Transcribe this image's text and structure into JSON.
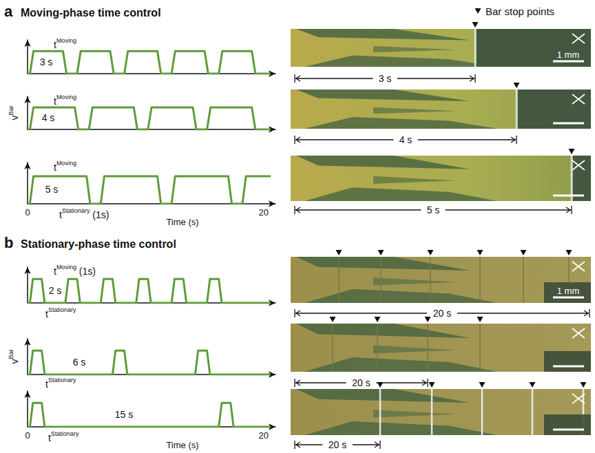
{
  "figure": {
    "legend_text": "Bar stop points",
    "panels": [
      {
        "letter": "a",
        "title": "Moving-phase time control",
        "images": [
          {
            "duration_label": "3 s",
            "scale_bar": "1 mm"
          },
          {
            "duration_label": "4 s"
          },
          {
            "duration_label": "5 s"
          }
        ]
      },
      {
        "letter": "b",
        "title": "Stationary-phase time control",
        "images": [
          {
            "duration_label": "20 s",
            "scale_bar": "1 mm"
          },
          {
            "duration_label": "20 s"
          },
          {
            "duration_label": "20 s"
          }
        ]
      }
    ]
  },
  "chart_data": [
    {
      "type": "line",
      "color": "#5e9c3a",
      "grid": false,
      "tick_labels": false,
      "xlim": [
        0,
        21
      ],
      "xticks": [],
      "ylim": [
        0,
        1.5
      ],
      "yticks": [],
      "x": [
        0,
        0.2,
        0.5,
        3.0,
        3.3,
        4.2,
        4.5,
        7.0,
        7.3,
        8.2,
        8.5,
        11.0,
        11.3,
        12.2,
        12.5,
        15.0,
        15.3,
        16.2,
        16.5,
        19.0,
        19.3,
        20.6
      ],
      "values": [
        0,
        0,
        1,
        1,
        0,
        0,
        1,
        1,
        0,
        0,
        1,
        1,
        0,
        0,
        1,
        1,
        0,
        0,
        1,
        1,
        0,
        0
      ],
      "annotations": [
        {
          "text": "t",
          "sup": "Moving"
        },
        {
          "text": "3 s"
        }
      ]
    },
    {
      "type": "line",
      "color": "#5e9c3a",
      "grid": false,
      "tick_labels": false,
      "xlim": [
        0,
        21
      ],
      "xticks": [],
      "ylim": [
        0,
        1.5
      ],
      "yticks": [],
      "y_label": {
        "text": "v",
        "sup": "Bar"
      },
      "x": [
        0,
        0.2,
        0.5,
        4.0,
        4.3,
        5.2,
        5.5,
        9.0,
        9.3,
        10.2,
        10.5,
        14.0,
        14.3,
        15.2,
        15.5,
        19.0,
        19.3,
        20.6
      ],
      "values": [
        0,
        0,
        1,
        1,
        0,
        0,
        1,
        1,
        0,
        0,
        1,
        1,
        0,
        0,
        1,
        1,
        0,
        0
      ],
      "annotations": [
        {
          "text": "t",
          "sup": "Moving"
        },
        {
          "text": "4 s"
        }
      ]
    },
    {
      "type": "line",
      "color": "#5e9c3a",
      "grid": false,
      "tick_labels": "x",
      "xlim": [
        0,
        21
      ],
      "xticks": [
        0,
        20
      ],
      "ylim": [
        0,
        1.5
      ],
      "yticks": [],
      "x_label": "Time (s)",
      "x": [
        0,
        0.2,
        0.5,
        5.0,
        5.3,
        6.2,
        6.5,
        11.0,
        11.3,
        12.2,
        12.5,
        17.0,
        17.3,
        18.2,
        18.5,
        20.6
      ],
      "values": [
        0,
        0,
        1,
        1,
        0,
        0,
        1,
        1,
        0,
        0,
        1,
        1,
        0,
        0,
        1,
        1
      ],
      "annotations": [
        {
          "text": "t",
          "sup": "Moving"
        },
        {
          "text": "5 s"
        },
        {
          "text": "t",
          "sup": "Stationary",
          "after": " (1s)"
        }
      ]
    },
    {
      "type": "line",
      "color": "#5e9c3a",
      "grid": false,
      "tick_labels": false,
      "xlim": [
        0,
        21
      ],
      "xticks": [],
      "ylim": [
        0,
        1.5
      ],
      "yticks": [],
      "x": [
        0,
        0.2,
        0.45,
        1.2,
        1.45,
        3.2,
        3.45,
        4.2,
        4.45,
        6.2,
        6.45,
        7.2,
        7.45,
        9.2,
        9.45,
        10.2,
        10.45,
        12.2,
        12.45,
        13.2,
        13.45,
        15.2,
        15.45,
        16.2,
        16.45,
        20.6
      ],
      "values": [
        0,
        0,
        1,
        1,
        0,
        0,
        1,
        1,
        0,
        0,
        1,
        1,
        0,
        0,
        1,
        1,
        0,
        0,
        1,
        1,
        0,
        0,
        1,
        1,
        0,
        0
      ],
      "annotations": [
        {
          "text": "t",
          "sup": "Moving",
          "after": " (1s)"
        },
        {
          "text": "2 s"
        },
        {
          "text": "t",
          "sup": "Stationary"
        }
      ]
    },
    {
      "type": "line",
      "color": "#5e9c3a",
      "grid": false,
      "tick_labels": false,
      "xlim": [
        0,
        21
      ],
      "xticks": [],
      "ylim": [
        0,
        1.5
      ],
      "yticks": [],
      "y_label": {
        "text": "v",
        "sup": "Bar"
      },
      "x": [
        0,
        0.2,
        0.45,
        1.2,
        1.45,
        7.2,
        7.45,
        8.2,
        8.45,
        14.2,
        14.45,
        15.2,
        15.45,
        20.6
      ],
      "values": [
        0,
        0,
        1,
        1,
        0,
        0,
        1,
        1,
        0,
        0,
        1,
        1,
        0,
        0
      ],
      "annotations": [
        {
          "text": "6 s"
        },
        {
          "text": "t",
          "sup": "Stationary"
        }
      ]
    },
    {
      "type": "line",
      "color": "#5e9c3a",
      "grid": false,
      "tick_labels": "x",
      "xlim": [
        0,
        21
      ],
      "xticks": [
        0,
        20
      ],
      "ylim": [
        0,
        1.5
      ],
      "yticks": [],
      "x_label": "Time (s)",
      "x": [
        0,
        0.2,
        0.45,
        1.2,
        1.45,
        16.2,
        16.45,
        17.2,
        17.45,
        20.6
      ],
      "values": [
        0,
        0,
        1,
        1,
        0,
        0,
        1,
        1,
        0,
        0
      ],
      "annotations": [
        {
          "text": "15 s"
        },
        {
          "text": "t",
          "sup": "Stationary"
        }
      ]
    }
  ]
}
